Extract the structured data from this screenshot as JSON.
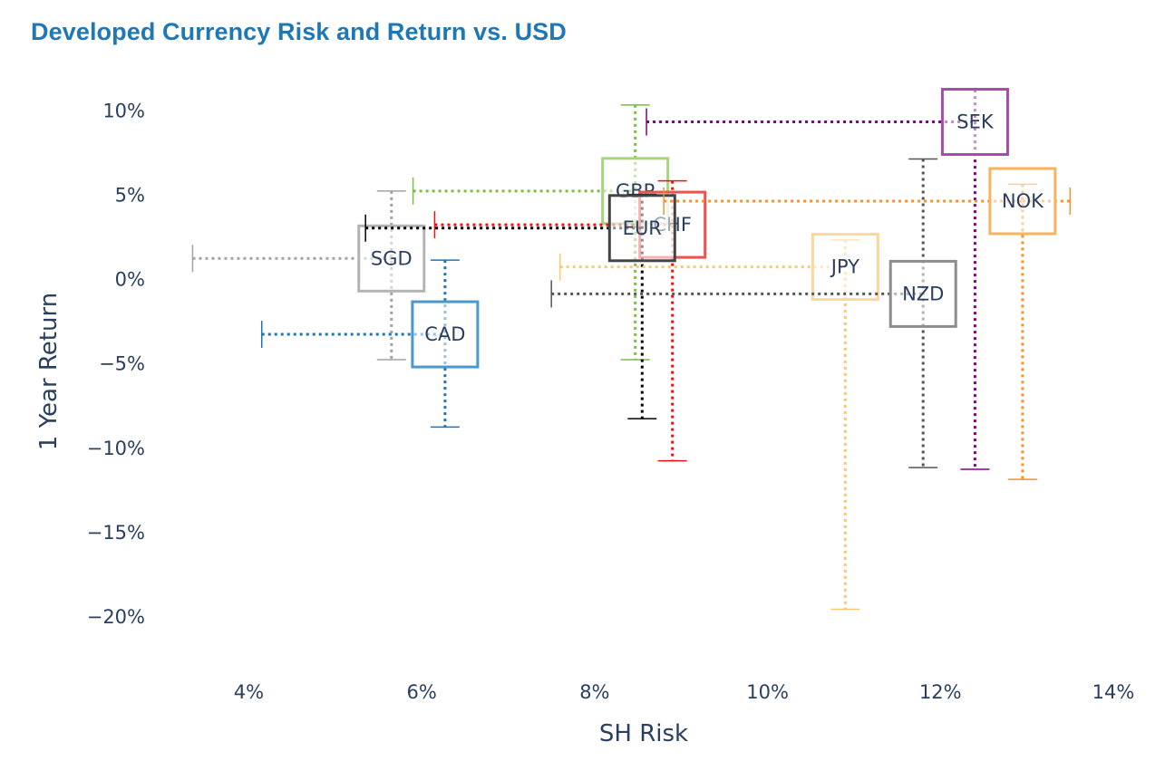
{
  "title": "Developed Currency Risk and Return vs. USD",
  "colors": {
    "title": "#1f78b4",
    "text": "#2a3f5f"
  },
  "chart_data": {
    "type": "scatter",
    "title": "Developed Currency Risk and Return vs. USD",
    "xlabel": "SH Risk",
    "ylabel": "1 Year Return",
    "xlim": [
      2.8,
      14
    ],
    "ylim": [
      -22.8,
      11.8
    ],
    "x_ticks": [
      4,
      6,
      8,
      10,
      12,
      14
    ],
    "x_tick_labels": [
      "4%",
      "6%",
      "8%",
      "10%",
      "12%",
      "14%"
    ],
    "y_ticks": [
      10,
      5,
      0,
      -5,
      -10,
      -15,
      -20
    ],
    "y_tick_labels": [
      "10%",
      "5%",
      "0%",
      "−5%",
      "−10%",
      "−15%",
      "−20%"
    ],
    "grid": false,
    "legend": "none",
    "marker": "square (open)",
    "series": [
      {
        "name": "SGD",
        "x": 5.65,
        "y": 1.2,
        "x_low": 3.35,
        "y_low": -4.8,
        "y_high": 5.2,
        "color": "#b3b3b3",
        "error_color": "#a3a3a3"
      },
      {
        "name": "CAD",
        "x": 6.27,
        "y": -3.3,
        "x_low": 4.15,
        "y_low": -8.8,
        "y_high": 1.1,
        "color": "#4b98cf",
        "error_color": "#1f74b6"
      },
      {
        "name": "GBP",
        "x": 8.47,
        "y": 5.2,
        "x_low": 5.9,
        "y_low": -4.8,
        "y_high": 10.3,
        "color": "#a6d57a",
        "error_color": "#7cbf3e"
      },
      {
        "name": "CHF",
        "x": 8.9,
        "y": 3.2,
        "x_low": 6.15,
        "y_low": -10.8,
        "y_high": 5.8,
        "color": "#ef5350",
        "error_color": "#ee1111"
      },
      {
        "name": "EUR",
        "x": 8.55,
        "y": 3.0,
        "x_low": 5.35,
        "y_low": -8.3,
        "y_high": 5.0,
        "color": "#444444",
        "error_color": "#000000"
      },
      {
        "name": "JPY",
        "x": 10.9,
        "y": 0.7,
        "x_low": 7.6,
        "y_low": -19.6,
        "y_high": 2.3,
        "color": "#fdd69b",
        "error_color": "#fdc870"
      },
      {
        "name": "NZD",
        "x": 11.8,
        "y": -0.9,
        "x_low": 7.5,
        "y_low": -11.2,
        "y_high": 7.1,
        "color": "#8c8c8c",
        "error_color": "#555555"
      },
      {
        "name": "SEK",
        "x": 12.4,
        "y": 9.3,
        "x_low": 8.6,
        "y_low": -11.3,
        "y_high": 11.2,
        "color": "#a64ca6",
        "error_color": "#800080"
      },
      {
        "name": "NOK",
        "x": 12.95,
        "y": 4.6,
        "x_low": 8.8,
        "y_low": -11.9,
        "y_high": 5.6,
        "x_high": 13.5,
        "color": "#f8b35e",
        "error_color": "#f5922b"
      }
    ]
  }
}
